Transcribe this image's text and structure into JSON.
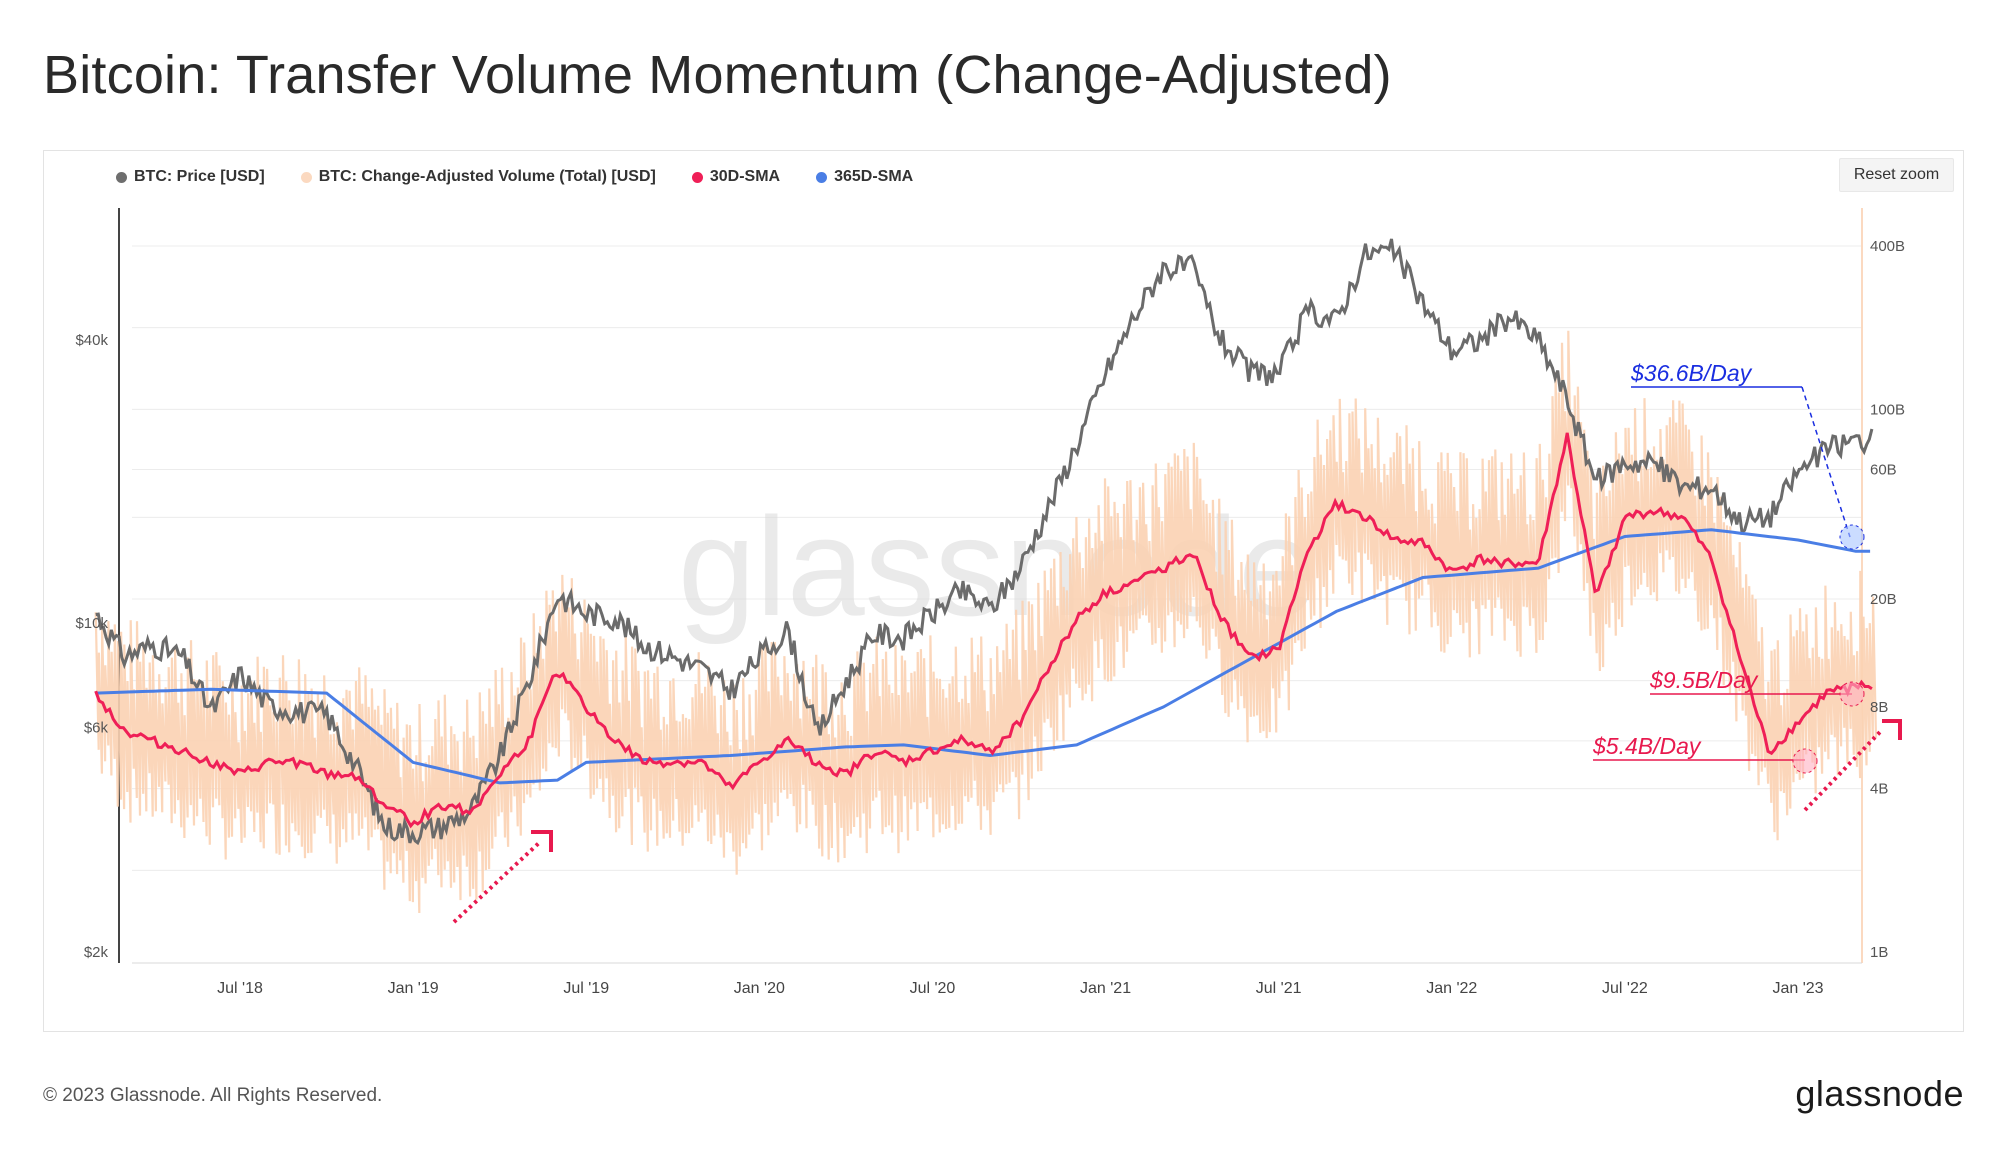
{
  "title": "Bitcoin: Transfer Volume Momentum (Change-Adjusted)",
  "legend": [
    {
      "label": "BTC: Price [USD]",
      "color": "#6e6e6e"
    },
    {
      "label": "BTC: Change-Adjusted Volume (Total) [USD]",
      "color": "#fbd9c0"
    },
    {
      "label": "30D-SMA",
      "color": "#ef1f57"
    },
    {
      "label": "365D-SMA",
      "color": "#4a7ee5"
    }
  ],
  "reset_zoom": "Reset zoom",
  "watermark": "glassnode",
  "footer": {
    "copyright": "© 2023 Glassnode. All Rights Reserved.",
    "brand": "glassnode"
  },
  "chart_data": {
    "type": "line",
    "title": "Bitcoin: Transfer Volume Momentum (Change-Adjusted)",
    "x_ticks": [
      "Jul '18",
      "Jan '19",
      "Jul '19",
      "Jan '20",
      "Jul '20",
      "Jan '21",
      "Jul '21",
      "Jan '22",
      "Jul '22",
      "Jan '23"
    ],
    "y_left": {
      "label": "",
      "scale": "log",
      "ticks": [
        "$40k",
        "$10k",
        "$6k",
        "$2k"
      ]
    },
    "y_right": {
      "label": "",
      "scale": "log",
      "ticks": [
        "400B",
        "100B",
        "60B",
        "20B",
        "8B",
        "4B",
        "1B"
      ]
    },
    "x_range": [
      "2018-02",
      "2023-03"
    ],
    "series": [
      {
        "name": "BTC: Price [USD]",
        "axis": "left",
        "points": [
          [
            "2018-02",
            10500
          ],
          [
            "2018-03",
            8500
          ],
          [
            "2018-04",
            9000
          ],
          [
            "2018-05",
            8500
          ],
          [
            "2018-06",
            6500
          ],
          [
            "2018-07",
            7800
          ],
          [
            "2018-08",
            6700
          ],
          [
            "2018-09",
            6500
          ],
          [
            "2018-10",
            6400
          ],
          [
            "2018-11",
            5000
          ],
          [
            "2018-12",
            3700
          ],
          [
            "2019-01",
            3600
          ],
          [
            "2019-02",
            3700
          ],
          [
            "2019-03",
            4000
          ],
          [
            "2019-04",
            5200
          ],
          [
            "2019-05",
            7500
          ],
          [
            "2019-06",
            11500
          ],
          [
            "2019-07",
            10500
          ],
          [
            "2019-08",
            10300
          ],
          [
            "2019-09",
            9000
          ],
          [
            "2019-10",
            8500
          ],
          [
            "2019-11",
            8000
          ],
          [
            "2019-12",
            7200
          ],
          [
            "2020-01",
            8500
          ],
          [
            "2020-02",
            9700
          ],
          [
            "2020-03",
            5800
          ],
          [
            "2020-04",
            7500
          ],
          [
            "2020-05",
            9500
          ],
          [
            "2020-06",
            9300
          ],
          [
            "2020-07",
            10500
          ],
          [
            "2020-08",
            11700
          ],
          [
            "2020-09",
            10700
          ],
          [
            "2020-10",
            13000
          ],
          [
            "2020-11",
            17500
          ],
          [
            "2020-12",
            24000
          ],
          [
            "2021-01",
            34000
          ],
          [
            "2021-02",
            45000
          ],
          [
            "2021-03",
            57000
          ],
          [
            "2021-04",
            57000
          ],
          [
            "2021-05",
            40000
          ],
          [
            "2021-06",
            34000
          ],
          [
            "2021-07",
            34000
          ],
          [
            "2021-08",
            46000
          ],
          [
            "2021-09",
            44000
          ],
          [
            "2021-10",
            61000
          ],
          [
            "2021-11",
            62000
          ],
          [
            "2021-12",
            48000
          ],
          [
            "2022-01",
            38000
          ],
          [
            "2022-02",
            40000
          ],
          [
            "2022-03",
            45000
          ],
          [
            "2022-04",
            40000
          ],
          [
            "2022-05",
            30000
          ],
          [
            "2022-06",
            20000
          ],
          [
            "2022-07",
            22000
          ],
          [
            "2022-08",
            22000
          ],
          [
            "2022-09",
            19500
          ],
          [
            "2022-10",
            19500
          ],
          [
            "2022-11",
            16500
          ],
          [
            "2022-12",
            16800
          ],
          [
            "2023-01",
            21000
          ],
          [
            "2023-02",
            23500
          ],
          [
            "2023-03",
            24500
          ]
        ]
      },
      {
        "name": "30D-SMA",
        "axis": "right",
        "points": [
          [
            "2018-02",
            9
          ],
          [
            "2018-03",
            6.5
          ],
          [
            "2018-04",
            6
          ],
          [
            "2018-05",
            5.5
          ],
          [
            "2018-06",
            5
          ],
          [
            "2018-07",
            4.5
          ],
          [
            "2018-08",
            5
          ],
          [
            "2018-09",
            5
          ],
          [
            "2018-10",
            4.5
          ],
          [
            "2018-11",
            4.5
          ],
          [
            "2018-12",
            3.5
          ],
          [
            "2019-01",
            3
          ],
          [
            "2019-02",
            3.5
          ],
          [
            "2019-03",
            3.3
          ],
          [
            "2019-04",
            4.5
          ],
          [
            "2019-05",
            6
          ],
          [
            "2019-06",
            11
          ],
          [
            "2019-07",
            8
          ],
          [
            "2019-08",
            6
          ],
          [
            "2019-09",
            5
          ],
          [
            "2019-10",
            5
          ],
          [
            "2019-11",
            5
          ],
          [
            "2019-12",
            4
          ],
          [
            "2020-01",
            5
          ],
          [
            "2020-02",
            6
          ],
          [
            "2020-03",
            5
          ],
          [
            "2020-04",
            4.5
          ],
          [
            "2020-05",
            5.5
          ],
          [
            "2020-06",
            5
          ],
          [
            "2020-07",
            5.5
          ],
          [
            "2020-08",
            6
          ],
          [
            "2020-09",
            5.5
          ],
          [
            "2020-10",
            7
          ],
          [
            "2020-11",
            11
          ],
          [
            "2020-12",
            17
          ],
          [
            "2021-01",
            21
          ],
          [
            "2021-02",
            23
          ],
          [
            "2021-03",
            26
          ],
          [
            "2021-04",
            30
          ],
          [
            "2021-05",
            17
          ],
          [
            "2021-06",
            12
          ],
          [
            "2021-07",
            13
          ],
          [
            "2021-08",
            30
          ],
          [
            "2021-09",
            45
          ],
          [
            "2021-10",
            40
          ],
          [
            "2021-11",
            33
          ],
          [
            "2021-12",
            32
          ],
          [
            "2022-01",
            25
          ],
          [
            "2022-02",
            28
          ],
          [
            "2022-03",
            27
          ],
          [
            "2022-04",
            27
          ],
          [
            "2022-05",
            80
          ],
          [
            "2022-06",
            20
          ],
          [
            "2022-07",
            40
          ],
          [
            "2022-08",
            42
          ],
          [
            "2022-09",
            40
          ],
          [
            "2022-10",
            28
          ],
          [
            "2022-11",
            12
          ],
          [
            "2022-12",
            5.4
          ],
          [
            "2023-01",
            7
          ],
          [
            "2023-02",
            9
          ],
          [
            "2023-03",
            9.5
          ]
        ]
      },
      {
        "name": "365D-SMA",
        "axis": "right",
        "points": [
          [
            "2018-02",
            9
          ],
          [
            "2018-06",
            9.3
          ],
          [
            "2018-10",
            9
          ],
          [
            "2019-01",
            5
          ],
          [
            "2019-04",
            4.2
          ],
          [
            "2019-06",
            4.3
          ],
          [
            "2019-07",
            5
          ],
          [
            "2019-12",
            5.3
          ],
          [
            "2020-04",
            5.7
          ],
          [
            "2020-06",
            5.8
          ],
          [
            "2020-09",
            5.3
          ],
          [
            "2020-12",
            5.8
          ],
          [
            "2021-03",
            8
          ],
          [
            "2021-06",
            12
          ],
          [
            "2021-09",
            18
          ],
          [
            "2021-12",
            24
          ],
          [
            "2022-04",
            26
          ],
          [
            "2022-07",
            34
          ],
          [
            "2022-10",
            36
          ],
          [
            "2023-01",
            33
          ],
          [
            "2023-03",
            30
          ]
        ]
      }
    ],
    "annotations": [
      "$36.6B/Day",
      "$9.5B/Day",
      "$5.4B/Day"
    ]
  }
}
